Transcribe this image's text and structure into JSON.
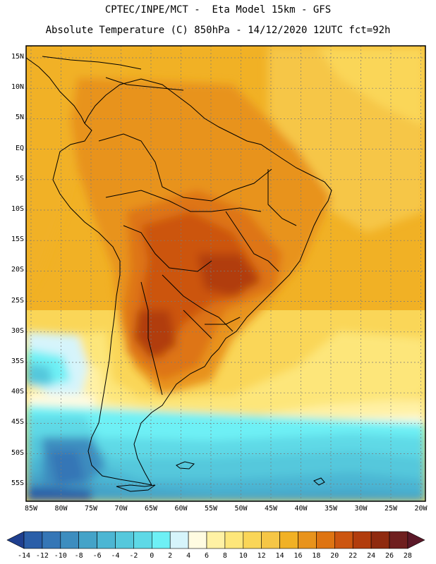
{
  "header": {
    "title_line1": "CPTEC/INPE/MCT -  Eta Model 15km - GFS",
    "title_line2": "Absolute Temperature (C) 850hPa - 14/12/2020 12UTC fct=92h"
  },
  "map": {
    "lat_labels": [
      "15N",
      "10N",
      "5N",
      "EQ",
      "5S",
      "10S",
      "15S",
      "20S",
      "25S",
      "30S",
      "35S",
      "40S",
      "45S",
      "50S",
      "55S"
    ],
    "lon_labels": [
      "85W",
      "80W",
      "75W",
      "70W",
      "65W",
      "60W",
      "55W",
      "50W",
      "45W",
      "40W",
      "35W",
      "30W",
      "25W",
      "20W"
    ],
    "region": "South America"
  },
  "colorbar": {
    "values": [
      "-14",
      "-12",
      "-10",
      "-8",
      "-6",
      "-4",
      "-2",
      "0",
      "2",
      "4",
      "6",
      "8",
      "10",
      "12",
      "14",
      "16",
      "18",
      "20",
      "22",
      "24",
      "26",
      "28"
    ],
    "colors": [
      "#1f3f8f",
      "#2a5ea8",
      "#3576b6",
      "#3d8dbf",
      "#44a3c8",
      "#4cb6d3",
      "#55c8dc",
      "#5ed9e6",
      "#6ef0f5",
      "#d6f4fb",
      "#fffbe1",
      "#fff1a4",
      "#fde67a",
      "#fad658",
      "#f6c646",
      "#f1b125",
      "#e8931c",
      "#de7412",
      "#cc5510",
      "#b13c0d",
      "#8f2a0f",
      "#6f1f1f",
      "#5b1828"
    ]
  }
}
